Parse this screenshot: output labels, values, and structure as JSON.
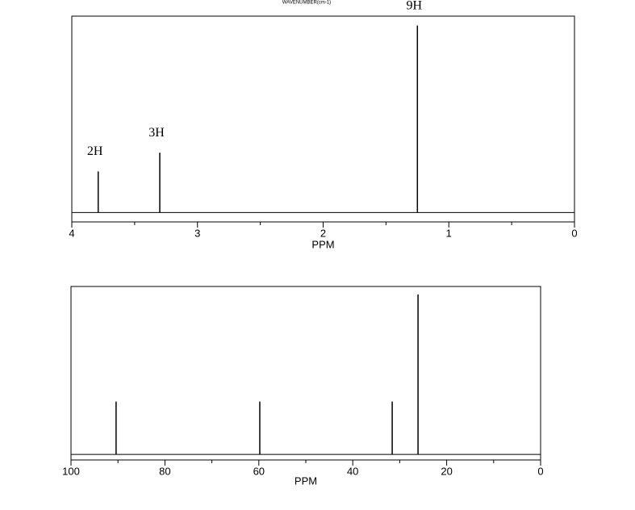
{
  "header": {
    "text": "WAVENUMBER(cm-1)"
  },
  "chart_data": [
    {
      "type": "spectrum",
      "xlabel": "PPM",
      "xlim": [
        4,
        0
      ],
      "xticks": [
        4,
        3,
        2,
        1,
        0
      ],
      "xminor_ticks": [
        3.5,
        2.5,
        1.5,
        0.5
      ],
      "ylim": [
        -5,
        105
      ],
      "x": [
        3.79,
        3.3,
        1.25
      ],
      "values": [
        22,
        32,
        100
      ],
      "peak_labels": [
        "2H",
        "3H",
        "9H"
      ],
      "color": "#000000"
    },
    {
      "type": "spectrum",
      "xlabel": "PPM",
      "xlim": [
        100,
        0
      ],
      "xticks": [
        100,
        80,
        60,
        40,
        20,
        0
      ],
      "xminor_ticks": [
        90,
        70,
        50,
        30,
        10
      ],
      "ylim": [
        -3.5,
        105
      ],
      "x": [
        90.4,
        59.8,
        31.6,
        26.1
      ],
      "values": [
        33,
        33,
        33,
        100
      ],
      "color": "#000000"
    }
  ]
}
